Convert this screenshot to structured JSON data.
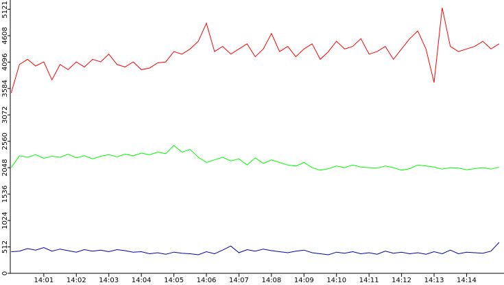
{
  "chart_data": {
    "type": "line",
    "x": [
      0,
      0.25,
      0.5,
      0.75,
      1,
      1.25,
      1.5,
      1.75,
      2,
      2.25,
      2.5,
      2.75,
      3,
      3.25,
      3.5,
      3.75,
      4,
      4.25,
      4.5,
      4.75,
      5,
      5.25,
      5.5,
      5.75,
      6,
      6.25,
      6.5,
      6.75,
      7,
      7.25,
      7.5,
      7.75,
      8,
      8.25,
      8.5,
      8.75,
      9,
      9.25,
      9.5,
      9.75,
      10,
      10.25,
      10.5,
      10.75,
      11,
      11.25,
      11.5,
      11.75,
      12,
      12.25,
      12.5,
      12.75,
      13,
      13.25,
      13.5,
      13.75,
      14,
      14.25,
      14.5,
      14.75,
      15
    ],
    "series": [
      {
        "name": "red",
        "color": "#ff0000",
        "values": [
          3500,
          4050,
          4150,
          4020,
          4100,
          3750,
          4050,
          3950,
          4100,
          4000,
          4150,
          4100,
          4250,
          4050,
          4000,
          4100,
          3950,
          3980,
          4080,
          4100,
          4300,
          4250,
          4350,
          4500,
          4850,
          4300,
          4400,
          4250,
          4350,
          4450,
          4200,
          4350,
          4650,
          4300,
          4400,
          4200,
          4350,
          4450,
          4150,
          4300,
          4500,
          4350,
          4400,
          4550,
          4250,
          4300,
          4400,
          4150,
          4350,
          4550,
          4700,
          4350,
          3700,
          5150,
          4400,
          4300,
          4350,
          4400,
          4500,
          4350,
          4450
        ]
      },
      {
        "name": "green",
        "color": "#00ff00",
        "values": [
          2050,
          2280,
          2250,
          2300,
          2230,
          2270,
          2250,
          2310,
          2240,
          2280,
          2220,
          2270,
          2300,
          2260,
          2310,
          2280,
          2330,
          2300,
          2350,
          2320,
          2480,
          2350,
          2400,
          2250,
          2150,
          2200,
          2250,
          2180,
          2220,
          2100,
          2240,
          2130,
          2200,
          2150,
          2100,
          2080,
          2150,
          2050,
          2000,
          2030,
          2080,
          2050,
          2100,
          2060,
          2050,
          2040,
          2080,
          2050,
          2000,
          2030,
          2100,
          2080,
          2060,
          2020,
          2050,
          2040,
          2010,
          2030,
          2050,
          2020,
          2060
        ]
      },
      {
        "name": "blue",
        "color": "#0000aa",
        "values": [
          420,
          430,
          480,
          450,
          500,
          430,
          470,
          440,
          410,
          460,
          430,
          450,
          420,
          460,
          440,
          410,
          420,
          380,
          400,
          370,
          410,
          390,
          380,
          360,
          420,
          380,
          450,
          530,
          400,
          460,
          430,
          470,
          440,
          420,
          400,
          430,
          450,
          400,
          380,
          360,
          410,
          390,
          420,
          380,
          400,
          370,
          430,
          390,
          410,
          380,
          400,
          370,
          420,
          380,
          450,
          380,
          410,
          400,
          390,
          430,
          600
        ]
      }
    ],
    "xlim": [
      -0.03,
      15.15
    ],
    "xticks": [
      {
        "value": 1,
        "label": "14:01"
      },
      {
        "value": 2,
        "label": "14:02"
      },
      {
        "value": 3,
        "label": "14:03"
      },
      {
        "value": 4,
        "label": "14:04"
      },
      {
        "value": 5,
        "label": "14:05"
      },
      {
        "value": 6,
        "label": "14:06"
      },
      {
        "value": 7,
        "label": "14:07"
      },
      {
        "value": 8,
        "label": "14:08"
      },
      {
        "value": 9,
        "label": "14:09"
      },
      {
        "value": 10,
        "label": "14:10"
      },
      {
        "value": 11,
        "label": "14:11"
      },
      {
        "value": 12,
        "label": "14:12"
      },
      {
        "value": 13,
        "label": "14:13"
      },
      {
        "value": 14,
        "label": "14:14"
      }
    ],
    "ylim": [
      0,
      5300
    ],
    "yticks": [
      0,
      512,
      1024,
      1536,
      2048,
      2560,
      3072,
      3584,
      4096,
      4608,
      5121
    ]
  }
}
